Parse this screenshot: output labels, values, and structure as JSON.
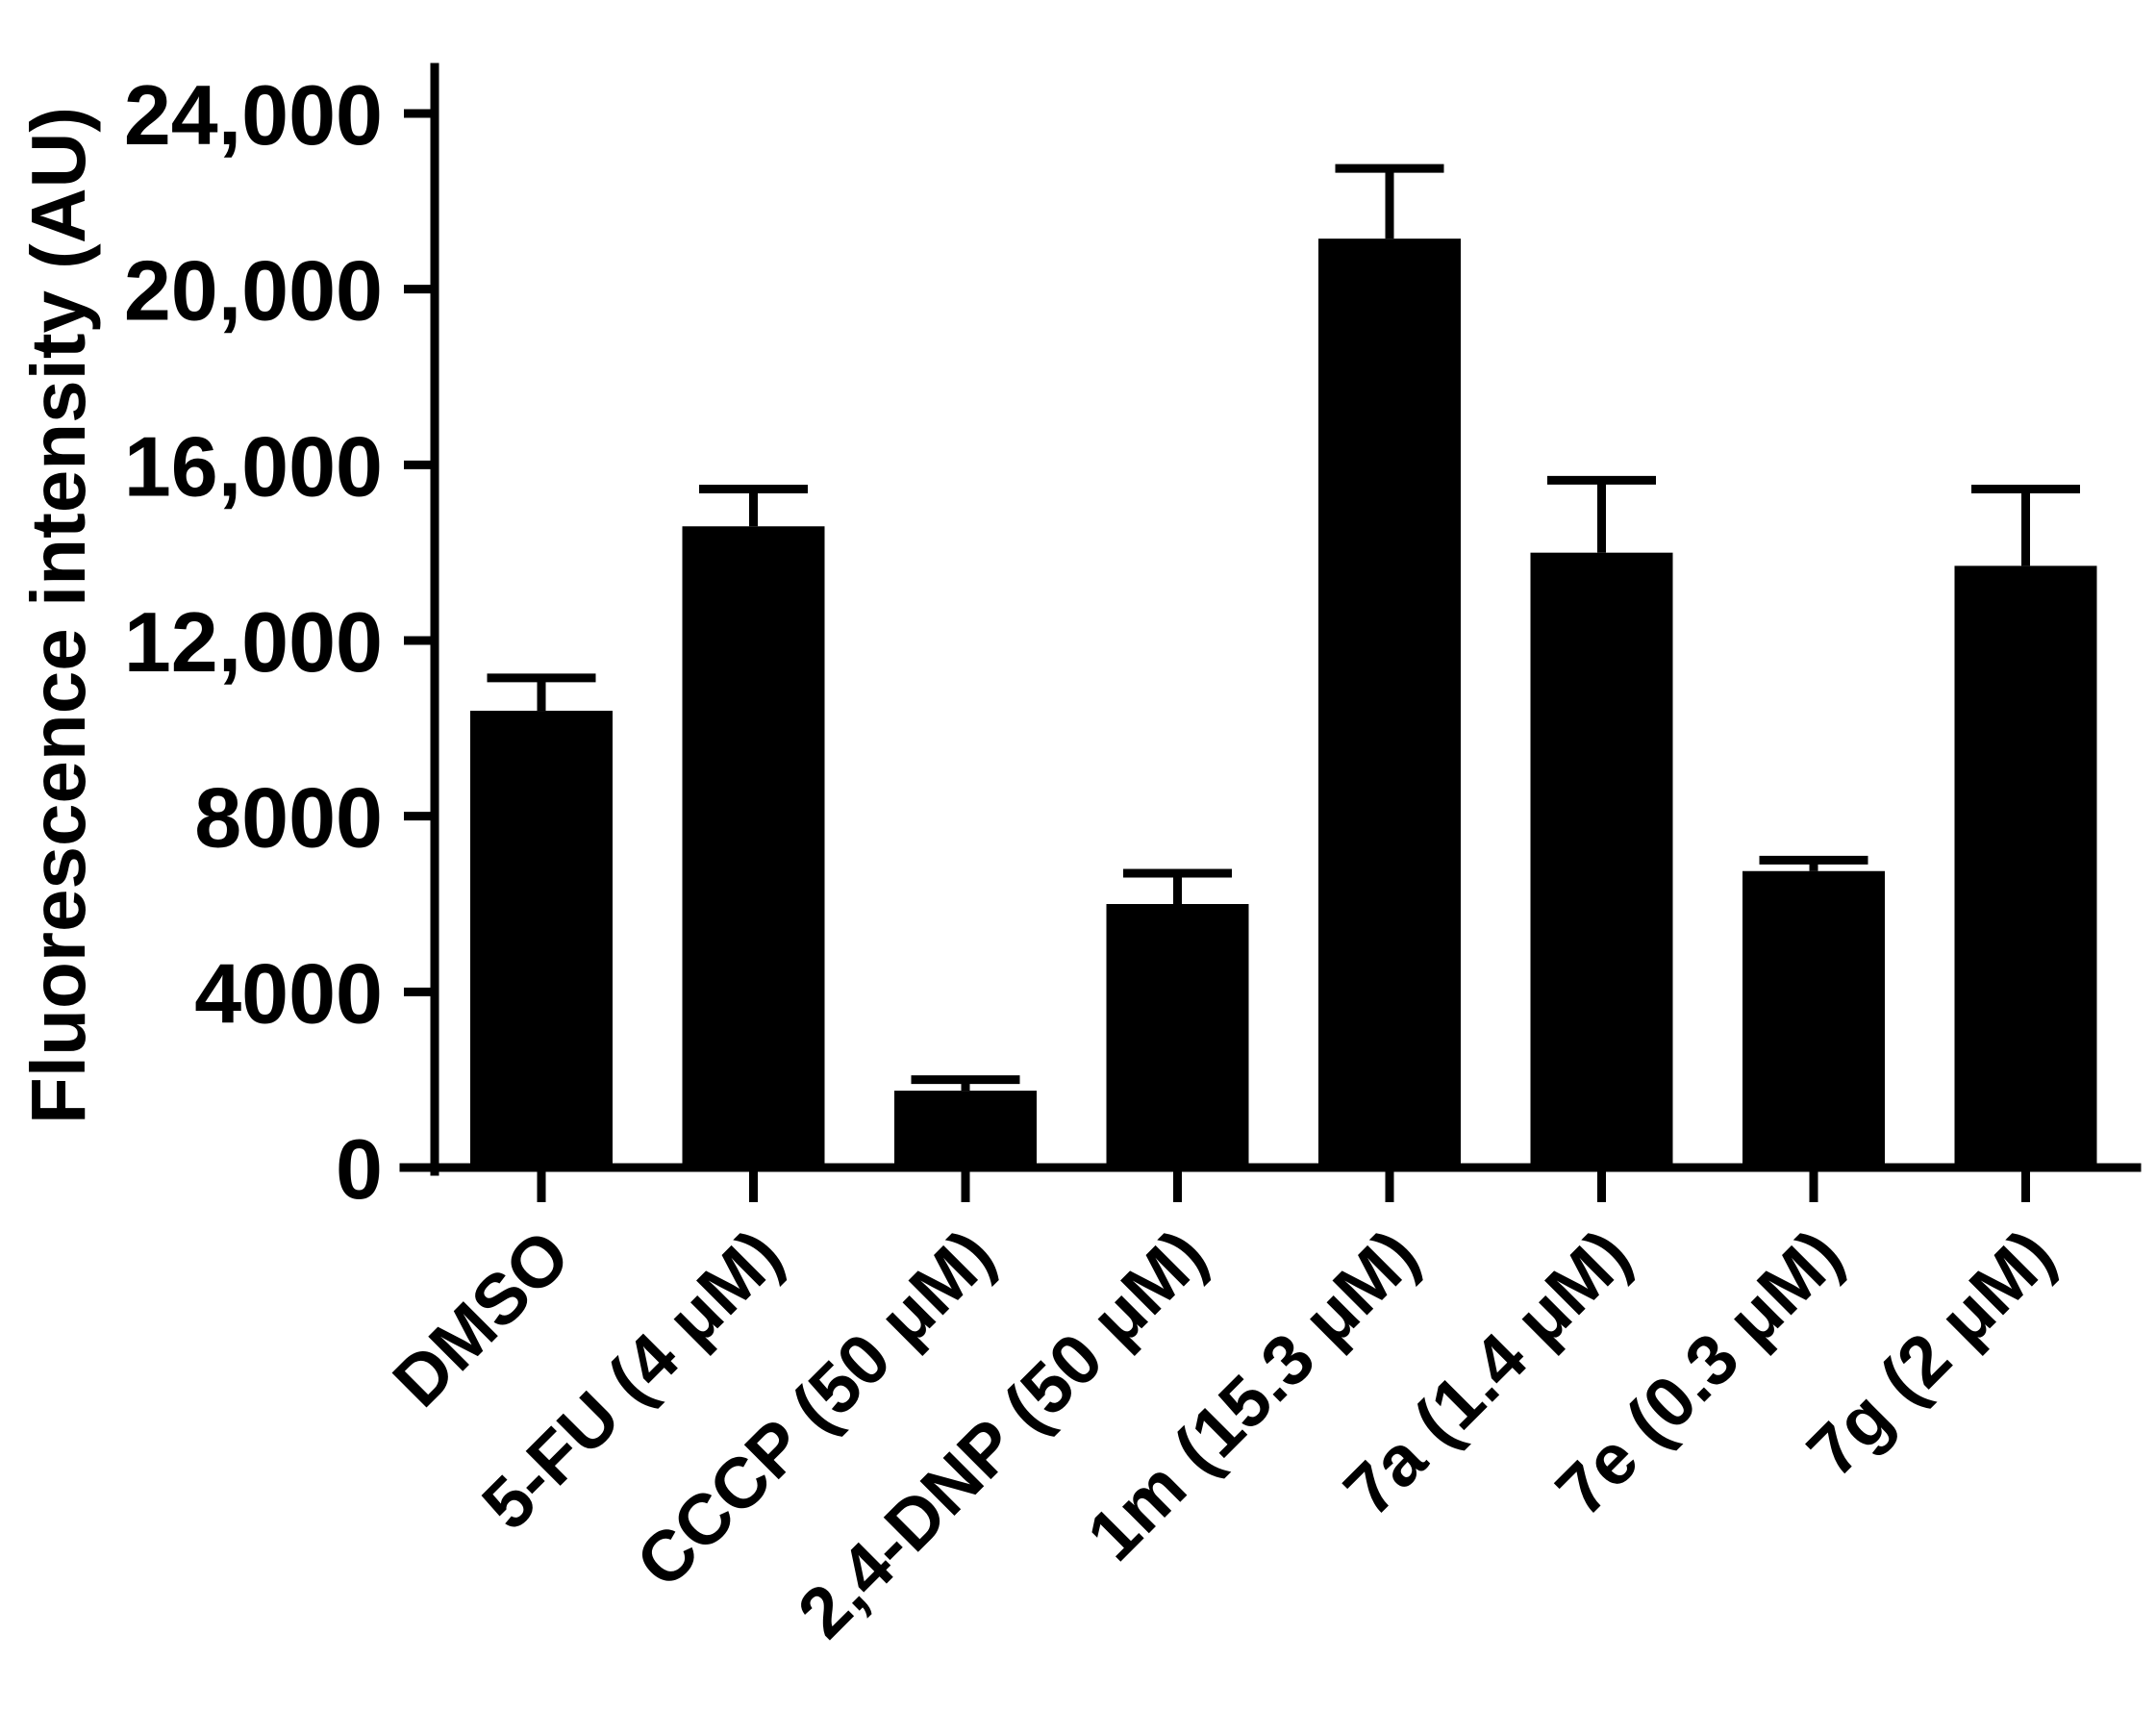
{
  "chart_data": {
    "type": "bar",
    "title": "",
    "xlabel": "",
    "ylabel": "Fluorescence intensity (AU)",
    "ylim": [
      0,
      24000
    ],
    "yticks": [
      0,
      4000,
      8000,
      12000,
      16000,
      20000,
      24000
    ],
    "ytick_labels": [
      "0",
      "4000",
      "8000",
      "12,000",
      "16,000",
      "20,000",
      "24,000"
    ],
    "categories": [
      "DMSO",
      "5-FU (4 μM)",
      "CCCP (50 μM)",
      "2,4-DNP (50 μM)",
      "1m (15.3 μM)",
      "7a (1.4 μM)",
      "7e (0.3 μM)",
      "7g (2 μM)"
    ],
    "values": [
      10400,
      14600,
      1750,
      6000,
      21150,
      14000,
      6750,
      13700
    ],
    "errors": [
      750,
      850,
      250,
      700,
      1600,
      1650,
      250,
      1750
    ],
    "grid": false,
    "legend": "none",
    "colors": {
      "bar": "#000000",
      "axis": "#000000",
      "background": "#ffffff"
    }
  }
}
